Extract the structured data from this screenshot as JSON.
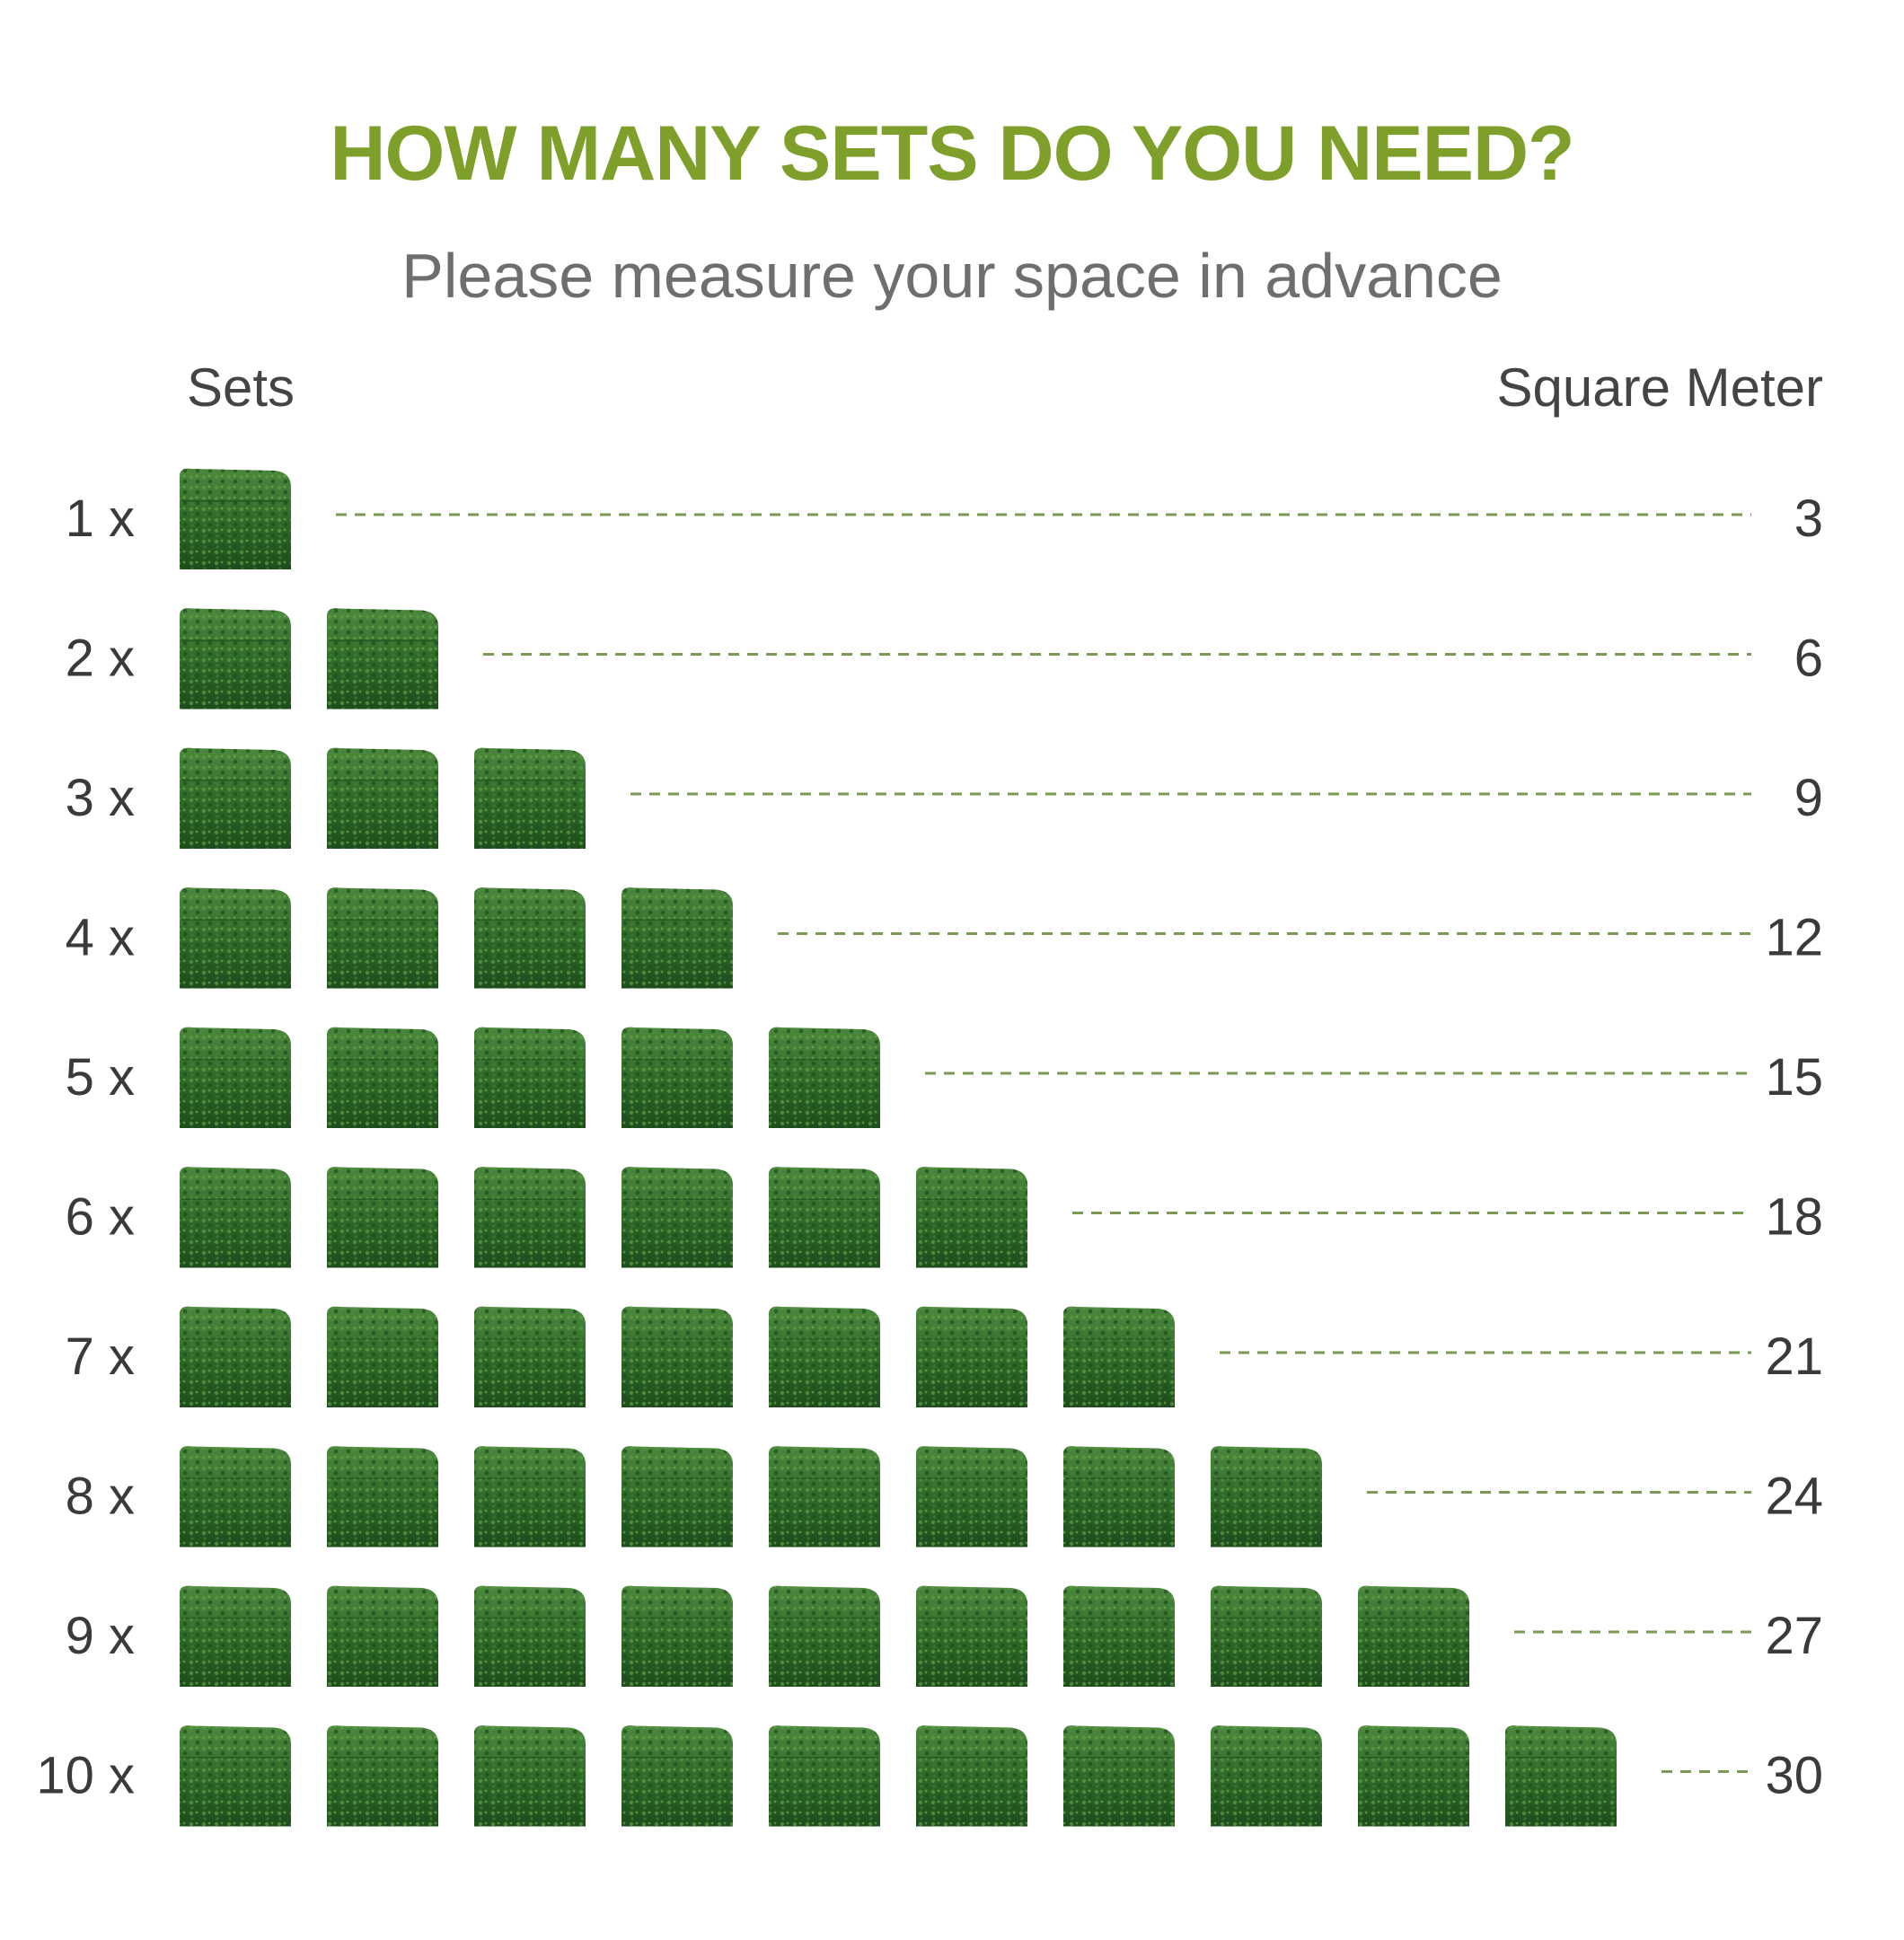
{
  "chart_data": {
    "type": "table",
    "title": "HOW MANY SETS DO YOU NEED?",
    "subtitle": "Please measure your space in advance",
    "column_headers": {
      "left": "Sets",
      "right": "Square Meter"
    },
    "rows": [
      {
        "label": "1 x",
        "sets": 1,
        "value": "3"
      },
      {
        "label": "2 x",
        "sets": 2,
        "value": "6"
      },
      {
        "label": "3 x",
        "sets": 3,
        "value": "9"
      },
      {
        "label": "4 x",
        "sets": 4,
        "value": "12"
      },
      {
        "label": "5 x",
        "sets": 5,
        "value": "15"
      },
      {
        "label": "6 x",
        "sets": 6,
        "value": "18"
      },
      {
        "label": "7 x",
        "sets": 7,
        "value": "21"
      },
      {
        "label": "8 x",
        "sets": 8,
        "value": "24"
      },
      {
        "label": "9 x",
        "sets": 9,
        "value": "27"
      },
      {
        "label": "10 x",
        "sets": 10,
        "value": "30"
      }
    ],
    "colors": {
      "title": "#7ea02a",
      "leader_line": "#7a9a55",
      "panel": "#2f6b2a"
    }
  }
}
